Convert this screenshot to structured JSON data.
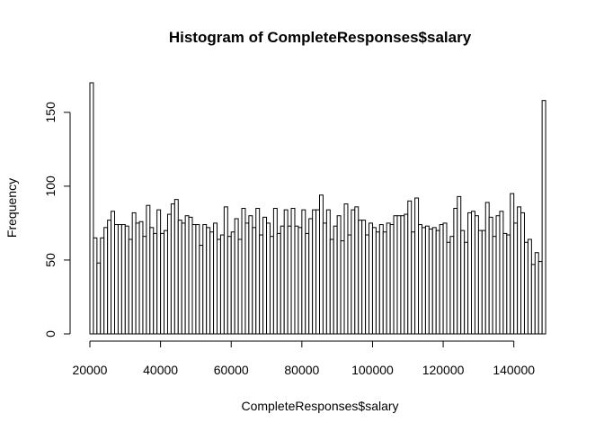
{
  "chart_data": {
    "type": "bar",
    "title": "Histogram of CompleteResponses$salary",
    "xlabel": "CompleteResponses$salary",
    "ylabel": "Frequency",
    "bin_width": 1000,
    "x_start": 20000,
    "x_end": 150000,
    "xlim": [
      20000,
      150000
    ],
    "ylim": [
      0,
      170
    ],
    "xticks": [
      20000,
      40000,
      60000,
      80000,
      100000,
      120000,
      140000
    ],
    "yticks": [
      0,
      50,
      100,
      150
    ],
    "grid": false,
    "legend": "none",
    "bar_fill": "#ffffff",
    "bar_stroke": "#000000",
    "values": [
      170,
      65,
      48,
      65,
      72,
      77,
      83,
      74,
      74,
      74,
      73,
      64,
      82,
      75,
      76,
      66,
      87,
      72,
      68,
      84,
      68,
      70,
      81,
      88,
      91,
      77,
      75,
      80,
      79,
      74,
      74,
      60,
      74,
      72,
      69,
      75,
      64,
      67,
      86,
      66,
      69,
      78,
      64,
      85,
      75,
      80,
      72,
      85,
      67,
      79,
      75,
      66,
      85,
      68,
      73,
      84,
      73,
      85,
      73,
      72,
      84,
      68,
      78,
      84,
      84,
      94,
      75,
      84,
      64,
      73,
      80,
      63,
      88,
      67,
      84,
      86,
      77,
      77,
      67,
      75,
      72,
      69,
      74,
      69,
      75,
      74,
      80,
      80,
      80,
      81,
      90,
      69,
      92,
      74,
      72,
      73,
      71,
      72,
      70,
      74,
      75,
      62,
      66,
      85,
      93,
      70,
      62,
      82,
      83,
      80,
      70,
      70,
      89,
      79,
      66,
      80,
      83,
      68,
      67,
      95,
      75,
      86,
      82,
      62,
      64,
      47,
      55,
      49,
      158
    ]
  }
}
